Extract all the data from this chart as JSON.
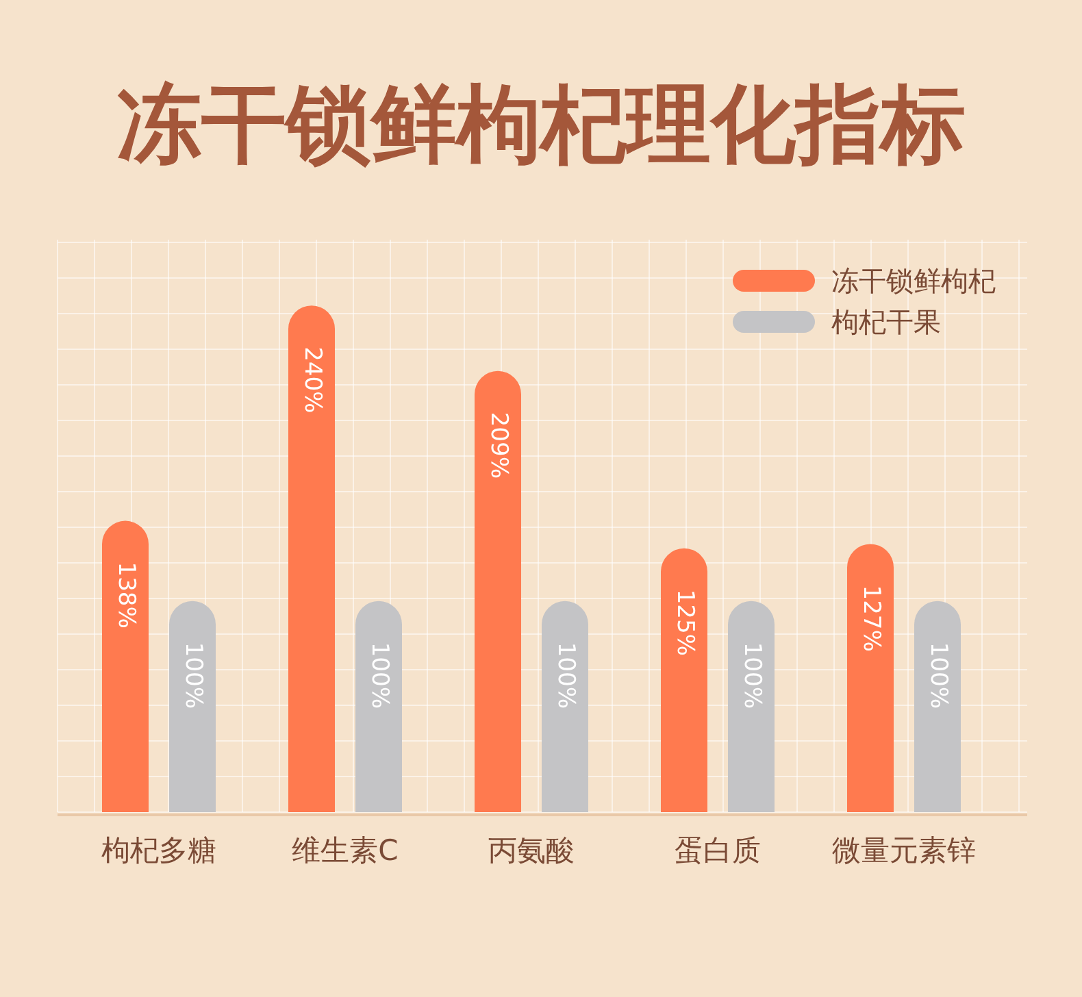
{
  "chart_data": {
    "type": "bar",
    "title": "冻干锁鲜枸杞理化指标",
    "categories": [
      "枸杞多糖",
      "维生素C",
      "丙氨酸",
      "蛋白质",
      "微量元素锌"
    ],
    "series": [
      {
        "name": "冻干锁鲜枸杞",
        "color": "#ff7a4f",
        "values": [
          138,
          240,
          209,
          125,
          127
        ],
        "value_labels": [
          "138%",
          "240%",
          "209%",
          "125%",
          "127%"
        ]
      },
      {
        "name": "枸杞干果",
        "color": "#c4c4c6",
        "values": [
          100,
          100,
          100,
          100,
          100
        ],
        "value_labels": [
          "100%",
          "100%",
          "100%",
          "100%",
          "100%"
        ]
      }
    ],
    "grid": true,
    "legend": "top right"
  }
}
